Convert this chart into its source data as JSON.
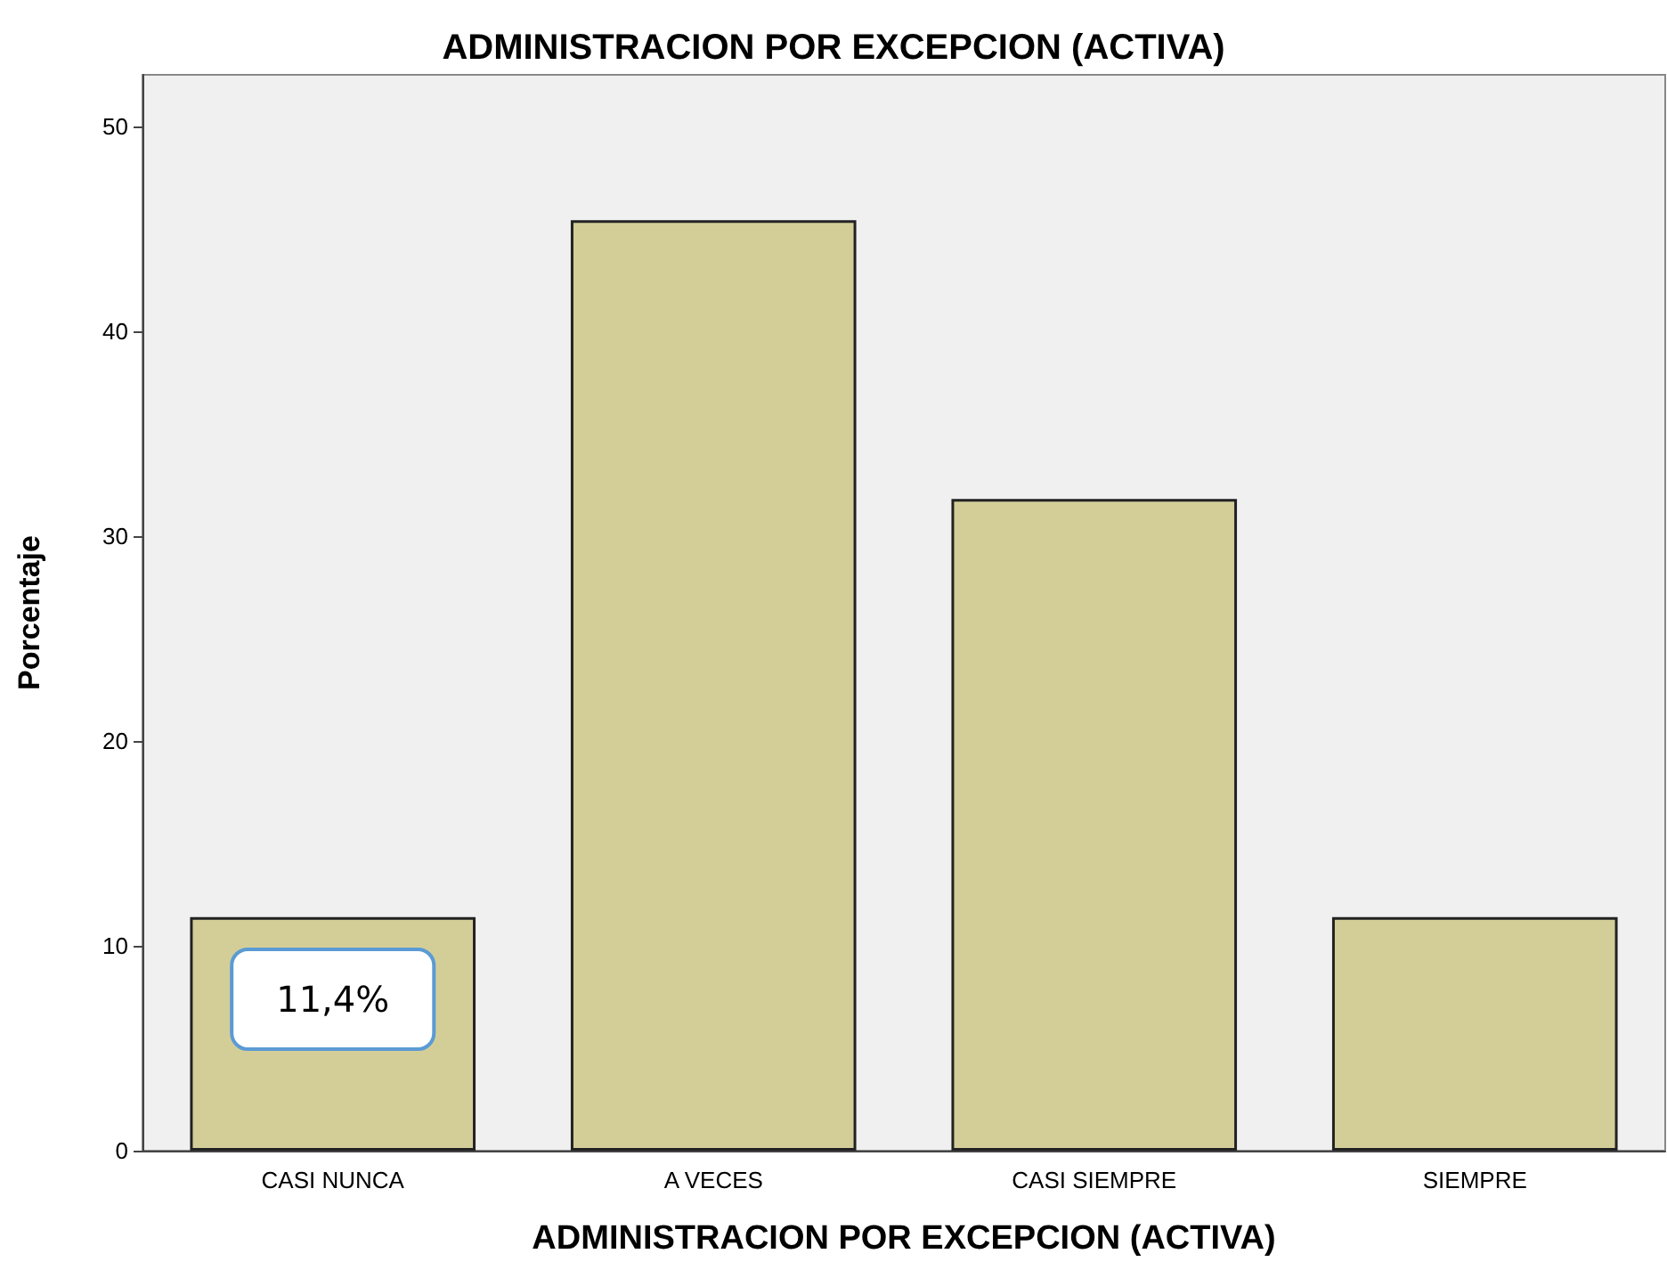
{
  "chart_data": {
    "type": "bar",
    "title": "ADMINISTRACION POR EXCEPCION (ACTIVA)",
    "xlabel": "ADMINISTRACION POR EXCEPCION (ACTIVA)",
    "ylabel": "Porcentaje",
    "categories": [
      "CASI NUNCA",
      "A VECES",
      "CASI SIEMPRE",
      "SIEMPRE"
    ],
    "values": [
      11.4,
      45.4,
      31.8,
      11.4
    ],
    "value_labels": [
      "11,4%",
      null,
      null,
      null
    ],
    "color": "#d3ce98",
    "ylim": [
      0,
      52.5
    ],
    "yticks": [
      0,
      10,
      20,
      30,
      40,
      50
    ]
  }
}
